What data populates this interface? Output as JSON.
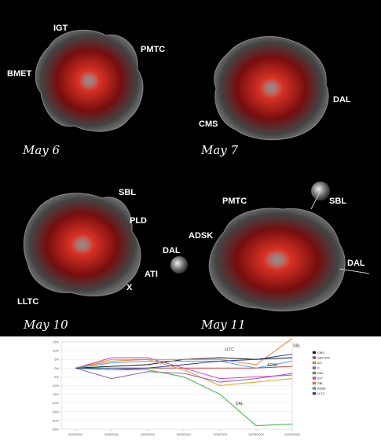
{
  "panels": [
    {
      "date": "May 6",
      "tickers": [
        "IGT",
        "PMTC",
        "BMET"
      ]
    },
    {
      "date": "May 7",
      "tickers": [
        "DAL",
        "CMS"
      ]
    },
    {
      "date": "May 10",
      "tickers": [
        "SBL",
        "PLD",
        "DAL",
        "ATI",
        "X",
        "LLTC"
      ]
    },
    {
      "date": "May 11",
      "tickers": [
        "PMTC",
        "SBL",
        "ADSK",
        "DAL"
      ]
    }
  ],
  "colors": {
    "blob_glow": "#ff2a1a",
    "blob_shell": "#cfcfcf",
    "background": "#000000"
  },
  "chart_data": {
    "type": "line",
    "x": [
      "3/05/2004",
      "4/05/2004",
      "5/05/2004",
      "6/05/2004",
      "7/05/2004",
      "10/05/2004",
      "11/05/2004"
    ],
    "y_ticks": [
      "15%",
      "10%",
      "5%",
      "0%",
      "-5%",
      "-10%",
      "-15%",
      "-20%",
      "-25%",
      "-30%",
      "-35%"
    ],
    "ylim": [
      -35,
      15
    ],
    "grid": true,
    "legend_position": "right",
    "series": [
      {
        "name": "CMS",
        "color": "#1a1a1a",
        "values": [
          0,
          1,
          2,
          5,
          6,
          5,
          6
        ]
      },
      {
        "name": "S&P 500",
        "color": "#d04040",
        "values": [
          0,
          -1,
          0,
          0,
          0,
          0,
          1
        ]
      },
      {
        "name": "ATI",
        "color": "#e0a020",
        "values": [
          0,
          5,
          5,
          -1,
          -10,
          -8,
          -6
        ]
      },
      {
        "name": "X",
        "color": "#9b59b6",
        "values": [
          0,
          -6,
          -2,
          -3,
          -8,
          -6,
          -3
        ]
      },
      {
        "name": "DAL",
        "color": "#3cb84a",
        "values": [
          0,
          -1,
          -1,
          -5,
          -15,
          -33,
          -32
        ]
      },
      {
        "name": "IGT",
        "color": "#e040c0",
        "values": [
          0,
          6,
          6,
          0,
          -6,
          -5,
          -4
        ]
      },
      {
        "name": "SBL",
        "color": "#f08030",
        "values": [
          0,
          4,
          5,
          5,
          5,
          2,
          17
        ]
      },
      {
        "name": "ADSK",
        "color": "#40a8d8",
        "values": [
          0,
          3,
          4,
          4,
          4,
          0,
          4
        ]
      },
      {
        "name": "LLTC",
        "color": "#2040a0",
        "values": [
          0,
          0,
          0,
          2,
          4,
          5,
          8
        ]
      }
    ],
    "annotations": [
      "LLTC",
      "SBL",
      "ADSK",
      "DAL"
    ]
  }
}
